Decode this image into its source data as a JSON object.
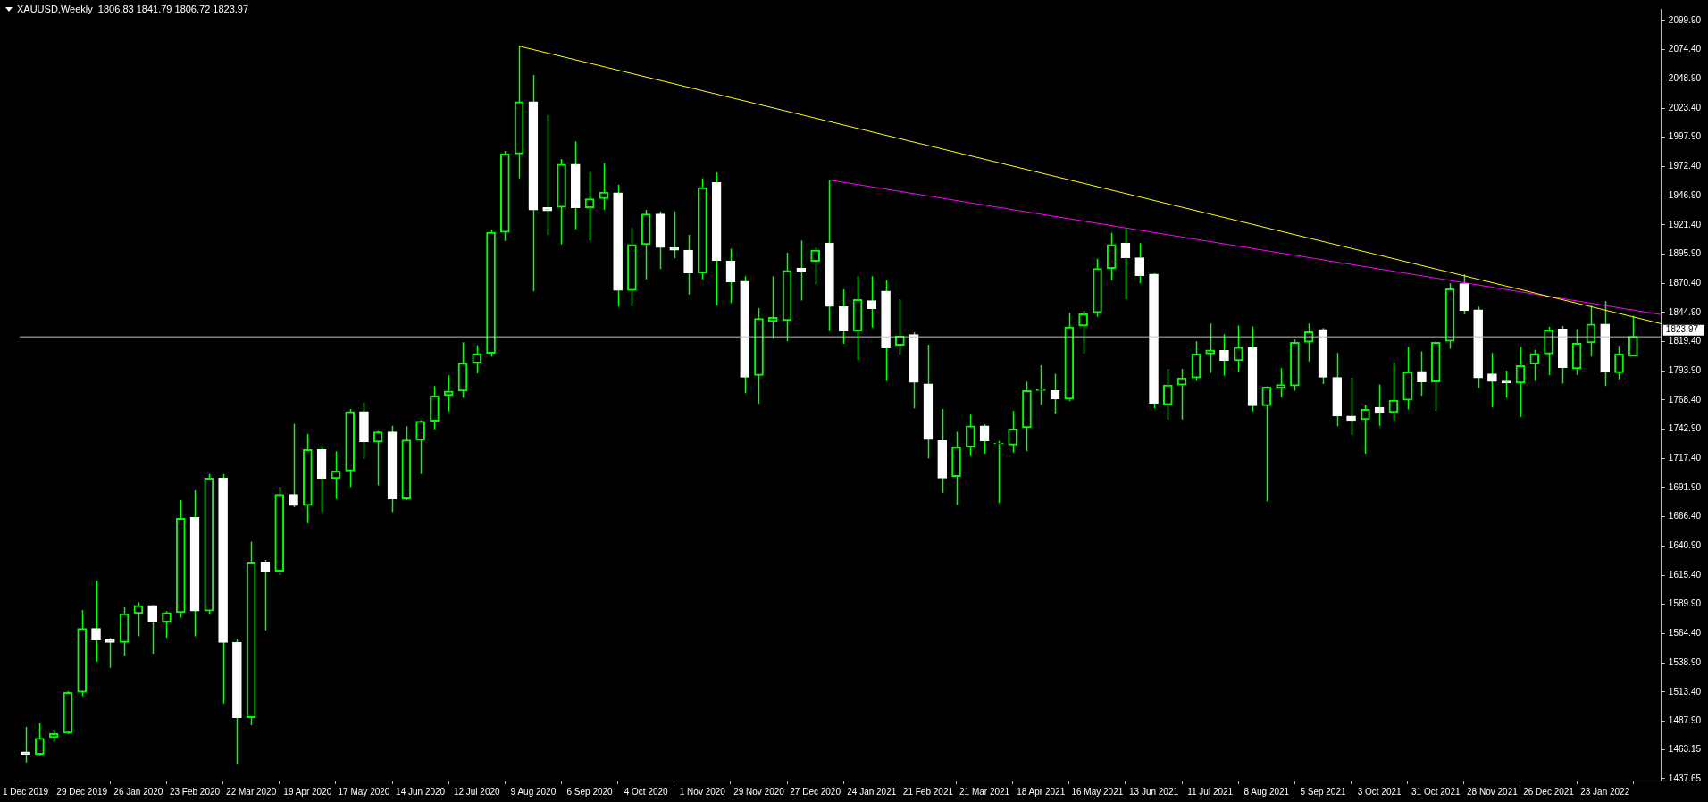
{
  "chart_data": {
    "type": "candlestick",
    "title": "XAUUSD,Weekly  1806.83 1841.79 1806.72 1823.97",
    "color": "#00ff00",
    "x": [
      "2019-12-01",
      "2019-12-08",
      "2019-12-15",
      "2019-12-22",
      "2019-12-29",
      "2020-01-05",
      "2020-01-12",
      "2020-01-19",
      "2020-01-26",
      "2020-02-02",
      "2020-02-09",
      "2020-02-16",
      "2020-02-23",
      "2020-03-01",
      "2020-03-08",
      "2020-03-15",
      "2020-03-22",
      "2020-03-29",
      "2020-04-05",
      "2020-04-12",
      "2020-04-19",
      "2020-04-26",
      "2020-05-03",
      "2020-05-10",
      "2020-05-17",
      "2020-05-24",
      "2020-05-31",
      "2020-06-07",
      "2020-06-14",
      "2020-06-21",
      "2020-06-28",
      "2020-07-05",
      "2020-07-12",
      "2020-07-19",
      "2020-07-26",
      "2020-08-02",
      "2020-08-09",
      "2020-08-16",
      "2020-08-23",
      "2020-08-30",
      "2020-09-06",
      "2020-09-13",
      "2020-09-20",
      "2020-09-27",
      "2020-10-04",
      "2020-10-11",
      "2020-10-18",
      "2020-10-25",
      "2020-11-01",
      "2020-11-08",
      "2020-11-15",
      "2020-11-22",
      "2020-11-29",
      "2020-12-06",
      "2020-12-13",
      "2020-12-20",
      "2020-12-27",
      "2021-01-03",
      "2021-01-10",
      "2021-01-17",
      "2021-01-24",
      "2021-01-31",
      "2021-02-07",
      "2021-02-14",
      "2021-02-21",
      "2021-02-28",
      "2021-03-07",
      "2021-03-14",
      "2021-03-21",
      "2021-03-28",
      "2021-04-04",
      "2021-04-11",
      "2021-04-18",
      "2021-04-25",
      "2021-05-02",
      "2021-05-09",
      "2021-05-16",
      "2021-05-23",
      "2021-05-30",
      "2021-06-06",
      "2021-06-13",
      "2021-06-20",
      "2021-06-27",
      "2021-07-04",
      "2021-07-11",
      "2021-07-18",
      "2021-07-25",
      "2021-08-01",
      "2021-08-08",
      "2021-08-15",
      "2021-08-22",
      "2021-08-29",
      "2021-09-05",
      "2021-09-12",
      "2021-09-19",
      "2021-09-26",
      "2021-10-03",
      "2021-10-10",
      "2021-10-17",
      "2021-10-24",
      "2021-10-31",
      "2021-11-07",
      "2021-11-14",
      "2021-11-21",
      "2021-11-28",
      "2021-12-05",
      "2021-12-12",
      "2021-12-19",
      "2021-12-26",
      "2022-01-02",
      "2022-01-09",
      "2022-01-16",
      "2022-01-23",
      "2022-01-30",
      "2022-02-06"
    ],
    "ohlc": [
      [
        1461.0,
        1482.8,
        1451.7,
        1458.8
      ],
      [
        1458.8,
        1486.4,
        1457.9,
        1473.0
      ],
      [
        1473.5,
        1480.6,
        1469.9,
        1477.0
      ],
      [
        1477.4,
        1514.3,
        1476.5,
        1513.0
      ],
      [
        1513.0,
        1585.0,
        1509.9,
        1569.0
      ],
      [
        1569.0,
        1610.8,
        1539.7,
        1558.8
      ],
      [
        1559.3,
        1560.6,
        1534.4,
        1556.6
      ],
      [
        1556.6,
        1587.3,
        1545.0,
        1581.9
      ],
      [
        1581.9,
        1591.7,
        1561.9,
        1589.0
      ],
      [
        1589.0,
        1589.5,
        1546.8,
        1574.4
      ],
      [
        1574.4,
        1584.1,
        1560.6,
        1582.8
      ],
      [
        1582.8,
        1681.0,
        1578.4,
        1665.0
      ],
      [
        1665.9,
        1689.5,
        1561.9,
        1584.1
      ],
      [
        1584.1,
        1703.7,
        1581.0,
        1700.2
      ],
      [
        1700.2,
        1703.7,
        1503.2,
        1556.6
      ],
      [
        1556.6,
        1559.7,
        1449.9,
        1490.8
      ],
      [
        1490.8,
        1644.6,
        1484.1,
        1626.8
      ],
      [
        1626.8,
        1628.6,
        1567.3,
        1618.8
      ],
      [
        1618.8,
        1692.6,
        1615.3,
        1685.9
      ],
      [
        1685.9,
        1747.7,
        1674.8,
        1676.2
      ],
      [
        1676.2,
        1738.8,
        1660.6,
        1725.1
      ],
      [
        1725.1,
        1728.2,
        1670.4,
        1699.7
      ],
      [
        1699.7,
        1723.7,
        1681.9,
        1706.4
      ],
      [
        1706.4,
        1760.6,
        1692.2,
        1758.4
      ],
      [
        1758.4,
        1766.4,
        1717.0,
        1731.7
      ],
      [
        1731.7,
        1741.5,
        1693.9,
        1740.6
      ],
      [
        1740.6,
        1745.9,
        1670.4,
        1681.9
      ],
      [
        1681.9,
        1745.5,
        1681.0,
        1733.5
      ],
      [
        1733.5,
        1750.8,
        1703.7,
        1749.9
      ],
      [
        1749.9,
        1780.6,
        1742.8,
        1772.2
      ],
      [
        1772.2,
        1789.9,
        1758.4,
        1776.2
      ],
      [
        1776.2,
        1818.8,
        1770.4,
        1800.6
      ],
      [
        1800.6,
        1816.2,
        1791.7,
        1809.1
      ],
      [
        1809.1,
        1917.1,
        1806.4,
        1914.9
      ],
      [
        1914.9,
        1986.0,
        1907.3,
        1983.3
      ],
      [
        1983.3,
        2077.5,
        1962.0,
        2029.1
      ],
      [
        2029.1,
        2052.2,
        1863.3,
        1934.4
      ],
      [
        1936.6,
        2017.5,
        1912.2,
        1933.5
      ],
      [
        1936.6,
        1978.9,
        1904.2,
        1974.4
      ],
      [
        1974.4,
        1994.4,
        1917.5,
        1936.2
      ],
      [
        1936.2,
        1967.7,
        1907.7,
        1944.2
      ],
      [
        1944.2,
        1975.3,
        1934.4,
        1950.0
      ],
      [
        1949.5,
        1956.6,
        1850.0,
        1864.2
      ],
      [
        1864.2,
        1918.4,
        1850.0,
        1904.2
      ],
      [
        1904.2,
        1934.4,
        1873.9,
        1930.9
      ],
      [
        1930.9,
        1933.1,
        1882.8,
        1901.5
      ],
      [
        1901.5,
        1933.1,
        1892.2,
        1899.3
      ],
      [
        1899.3,
        1912.6,
        1860.6,
        1879.3
      ],
      [
        1879.3,
        1962.0,
        1873.9,
        1954.0
      ],
      [
        1958.4,
        1967.3,
        1850.9,
        1890.0
      ],
      [
        1890.0,
        1900.6,
        1853.1,
        1871.3
      ],
      [
        1872.2,
        1876.6,
        1774.4,
        1788.2
      ],
      [
        1789.9,
        1848.6,
        1765.1,
        1839.7
      ],
      [
        1837.1,
        1876.6,
        1822.0,
        1840.6
      ],
      [
        1837.9,
        1897.1,
        1819.7,
        1881.5
      ],
      [
        1883.7,
        1907.7,
        1855.3,
        1880.2
      ],
      [
        1889.5,
        1901.5,
        1869.5,
        1899.3
      ],
      [
        1905.5,
        1960.6,
        1828.6,
        1850.0
      ],
      [
        1850.0,
        1865.1,
        1817.5,
        1828.6
      ],
      [
        1828.6,
        1876.6,
        1803.3,
        1856.2
      ],
      [
        1855.3,
        1876.6,
        1831.7,
        1848.2
      ],
      [
        1863.7,
        1873.1,
        1785.1,
        1813.9
      ],
      [
        1816.2,
        1856.2,
        1808.2,
        1824.2
      ],
      [
        1825.5,
        1827.7,
        1761.1,
        1783.7
      ],
      [
        1782.4,
        1816.6,
        1717.5,
        1733.9
      ],
      [
        1733.0,
        1760.6,
        1687.3,
        1700.2
      ],
      [
        1701.5,
        1740.6,
        1676.6,
        1727.3
      ],
      [
        1727.3,
        1755.7,
        1719.3,
        1745.9
      ],
      [
        1745.9,
        1747.3,
        1721.5,
        1732.6
      ],
      [
        1730.4,
        1732.6,
        1678.4,
        1730.8
      ],
      [
        1729.0,
        1758.8,
        1722.4,
        1743.3
      ],
      [
        1744.2,
        1784.6,
        1723.7,
        1776.6
      ],
      [
        1776.6,
        1798.8,
        1764.2,
        1777.5
      ],
      [
        1776.6,
        1791.3,
        1756.6,
        1769.1
      ],
      [
        1769.1,
        1844.6,
        1767.3,
        1832.2
      ],
      [
        1833.1,
        1846.4,
        1809.1,
        1843.7
      ],
      [
        1844.6,
        1891.7,
        1841.1,
        1883.3
      ],
      [
        1883.3,
        1914.4,
        1873.1,
        1904.2
      ],
      [
        1905.5,
        1918.4,
        1856.2,
        1892.6
      ],
      [
        1892.6,
        1905.5,
        1870.4,
        1877.1
      ],
      [
        1878.4,
        1879.0,
        1761.1,
        1765.5
      ],
      [
        1764.2,
        1795.7,
        1751.3,
        1781.5
      ],
      [
        1781.5,
        1795.7,
        1751.3,
        1787.7
      ],
      [
        1787.7,
        1819.7,
        1785.1,
        1808.6
      ],
      [
        1808.6,
        1835.3,
        1792.2,
        1812.2
      ],
      [
        1811.7,
        1825.9,
        1789.5,
        1802.8
      ],
      [
        1802.8,
        1833.5,
        1793.1,
        1814.4
      ],
      [
        1814.4,
        1832.6,
        1758.4,
        1763.3
      ],
      [
        1763.3,
        1780.5,
        1679.7,
        1779.7
      ],
      [
        1778.8,
        1796.2,
        1770.8,
        1781.9
      ],
      [
        1780.6,
        1821.1,
        1776.6,
        1818.8
      ],
      [
        1818.8,
        1835.3,
        1802.0,
        1828.2
      ],
      [
        1830.0,
        1831.3,
        1782.4,
        1788.2
      ],
      [
        1788.2,
        1809.5,
        1745.5,
        1754.4
      ],
      [
        1754.4,
        1787.7,
        1737.5,
        1750.4
      ],
      [
        1751.3,
        1764.2,
        1721.5,
        1760.2
      ],
      [
        1762.0,
        1781.9,
        1745.9,
        1757.5
      ],
      [
        1757.5,
        1801.1,
        1750.4,
        1768.2
      ],
      [
        1768.2,
        1814.8,
        1760.2,
        1793.1
      ],
      [
        1793.5,
        1810.8,
        1772.2,
        1784.2
      ],
      [
        1784.2,
        1819.5,
        1758.8,
        1818.8
      ],
      [
        1819.7,
        1870.4,
        1813.1,
        1865.5
      ],
      [
        1870.0,
        1878.4,
        1843.3,
        1846.4
      ],
      [
        1847.3,
        1850.0,
        1778.8,
        1787.7
      ],
      [
        1791.3,
        1809.5,
        1762.0,
        1784.6
      ],
      [
        1785.1,
        1794.0,
        1770.4,
        1783.3
      ],
      [
        1783.3,
        1814.8,
        1753.5,
        1798.4
      ],
      [
        1799.7,
        1812.2,
        1785.1,
        1809.1
      ],
      [
        1808.6,
        1832.2,
        1789.9,
        1829.5
      ],
      [
        1830.4,
        1833.1,
        1782.8,
        1796.6
      ],
      [
        1795.7,
        1830.4,
        1790.4,
        1817.9
      ],
      [
        1818.4,
        1850.9,
        1806.4,
        1834.8
      ],
      [
        1834.8,
        1854.8,
        1780.6,
        1792.6
      ],
      [
        1792.2,
        1815.7,
        1786.4,
        1808.6
      ],
      [
        1806.83,
        1841.79,
        1806.72,
        1823.97
      ]
    ],
    "colors": [
      "#ffffff",
      "#00ff00",
      "#00ff00",
      "#00ff00",
      "#00ff00",
      "#ffffff",
      "#ffffff",
      "#00ff00",
      "#00ff00",
      "#ffffff",
      "#00ff00",
      "#00ff00",
      "#ffffff",
      "#00ff00",
      "#ffffff",
      "#ffffff",
      "#00ff00",
      "#ffffff",
      "#00ff00",
      "#ffffff",
      "#00ff00",
      "#ffffff",
      "#00ff00",
      "#00ff00",
      "#ffffff",
      "#00ff00",
      "#ffffff",
      "#00ff00",
      "#00ff00",
      "#00ff00",
      "#00ff00",
      "#00ff00",
      "#00ff00",
      "#00ff00",
      "#00ff00",
      "#00ff00",
      "#ffffff",
      "#ffffff",
      "#00ff00",
      "#ffffff",
      "#00ff00",
      "#00ff00",
      "#ffffff",
      "#00ff00",
      "#00ff00",
      "#ffffff",
      "#ffffff",
      "#ffffff",
      "#00ff00",
      "#ffffff",
      "#ffffff",
      "#ffffff",
      "#00ff00",
      "#00ff00",
      "#00ff00",
      "#ffffff",
      "#00ff00",
      "#ffffff",
      "#ffffff",
      "#00ff00",
      "#ffffff",
      "#ffffff",
      "#00ff00",
      "#ffffff",
      "#ffffff",
      "#ffffff",
      "#00ff00",
      "#00ff00",
      "#ffffff",
      "#00ff00",
      "#00ff00",
      "#00ff00",
      "#00ff00",
      "#ffffff",
      "#00ff00",
      "#00ff00",
      "#00ff00",
      "#00ff00",
      "#ffffff",
      "#ffffff",
      "#ffffff",
      "#00ff00",
      "#00ff00",
      "#00ff00",
      "#00ff00",
      "#ffffff",
      "#00ff00",
      "#ffffff",
      "#00ff00",
      "#00ff00",
      "#00ff00",
      "#00ff00",
      "#ffffff",
      "#ffffff",
      "#ffffff",
      "#00ff00",
      "#ffffff",
      "#00ff00",
      "#00ff00",
      "#ffffff",
      "#00ff00",
      "#00ff00",
      "#ffffff",
      "#ffffff",
      "#ffffff",
      "#ffffff",
      "#00ff00",
      "#00ff00",
      "#00ff00",
      "#ffffff",
      "#00ff00",
      "#00ff00",
      "#ffffff",
      "#00ff00",
      "#00ff00"
    ],
    "series": [
      {
        "type": "line",
        "color": "#ffff00",
        "x": [
          "2020-08-02",
          "2022-02-20"
        ],
        "values": [
          2077.5,
          1835
        ]
      },
      {
        "type": "line",
        "color": "#ff00ff",
        "x": [
          "2021-01-03",
          "2022-02-20"
        ],
        "values": [
          1960.6,
          1843
        ]
      }
    ],
    "ref_lines": [
      {
        "axis": "y",
        "value": 1823.97,
        "label": "1823.97",
        "color": "#c0c0c0"
      }
    ],
    "xlim": [
      "2019-11-28",
      "2022-02-20"
    ],
    "xticks": [
      {
        "value": "2019-12-01",
        "label": "1 Dec 2019"
      },
      {
        "value": "2019-12-29",
        "label": "29 Dec 2019"
      },
      {
        "value": "2020-01-26",
        "label": "26 Jan 2020"
      },
      {
        "value": "2020-02-23",
        "label": "23 Feb 2020"
      },
      {
        "value": "2020-03-22",
        "label": "22 Mar 2020"
      },
      {
        "value": "2020-04-19",
        "label": "19 Apr 2020"
      },
      {
        "value": "2020-05-17",
        "label": "17 May 2020"
      },
      {
        "value": "2020-06-14",
        "label": "14 Jun 2020"
      },
      {
        "value": "2020-07-12",
        "label": "12 Jul 2020"
      },
      {
        "value": "2020-08-09",
        "label": "9 Aug 2020"
      },
      {
        "value": "2020-09-06",
        "label": "6 Sep 2020"
      },
      {
        "value": "2020-10-04",
        "label": "4 Oct 2020"
      },
      {
        "value": "2020-11-01",
        "label": "1 Nov 2020"
      },
      {
        "value": "2020-11-29",
        "label": "29 Nov 2020"
      },
      {
        "value": "2020-12-27",
        "label": "27 Dec 2020"
      },
      {
        "value": "2021-01-24",
        "label": "24 Jan 2021"
      },
      {
        "value": "2021-02-21",
        "label": "21 Feb 2021"
      },
      {
        "value": "2021-03-21",
        "label": "21 Mar 2021"
      },
      {
        "value": "2021-04-18",
        "label": "18 Apr 2021"
      },
      {
        "value": "2021-05-16",
        "label": "16 May 2021"
      },
      {
        "value": "2021-06-13",
        "label": "13 Jun 2021"
      },
      {
        "value": "2021-07-11",
        "label": "11 Jul 2021"
      },
      {
        "value": "2021-08-08",
        "label": "8 Aug 2021"
      },
      {
        "value": "2021-09-05",
        "label": "5 Sep 2021"
      },
      {
        "value": "2021-10-03",
        "label": "3 Oct 2021"
      },
      {
        "value": "2021-10-31",
        "label": "31 Oct 2021"
      },
      {
        "value": "2021-11-28",
        "label": "28 Nov 2021"
      },
      {
        "value": "2021-12-26",
        "label": "26 Dec 2021"
      },
      {
        "value": "2022-01-23",
        "label": "23 Jan 2022"
      }
    ],
    "ylim": [
      1436,
      2110
    ],
    "yticks": [
      {
        "value": 2099.9,
        "label": "2099.90"
      },
      {
        "value": 2074.4,
        "label": "2074.40"
      },
      {
        "value": 2048.9,
        "label": "2048.90"
      },
      {
        "value": 2023.4,
        "label": "2023.40"
      },
      {
        "value": 1997.9,
        "label": "1997.90"
      },
      {
        "value": 1972.4,
        "label": "1972.40"
      },
      {
        "value": 1946.9,
        "label": "1946.90"
      },
      {
        "value": 1921.4,
        "label": "1921.40"
      },
      {
        "value": 1895.9,
        "label": "1895.90"
      },
      {
        "value": 1870.4,
        "label": "1870.40"
      },
      {
        "value": 1844.9,
        "label": "1844.90"
      },
      {
        "value": 1819.4,
        "label": "1819.40"
      },
      {
        "value": 1793.9,
        "label": "1793.90"
      },
      {
        "value": 1768.4,
        "label": "1768.40"
      },
      {
        "value": 1742.9,
        "label": "1742.90"
      },
      {
        "value": 1717.4,
        "label": "1717.40"
      },
      {
        "value": 1691.9,
        "label": "1691.90"
      },
      {
        "value": 1666.4,
        "label": "1666.40"
      },
      {
        "value": 1640.9,
        "label": "1640.90"
      },
      {
        "value": 1615.4,
        "label": "1615.40"
      },
      {
        "value": 1589.9,
        "label": "1589.90"
      },
      {
        "value": 1564.4,
        "label": "1564.40"
      },
      {
        "value": 1538.9,
        "label": "1538.90"
      },
      {
        "value": 1513.4,
        "label": "1513.40"
      },
      {
        "value": 1487.9,
        "label": "1487.90"
      },
      {
        "value": 1463.15,
        "label": "1463.15"
      },
      {
        "value": 1437.65,
        "label": "1437.65"
      }
    ]
  }
}
